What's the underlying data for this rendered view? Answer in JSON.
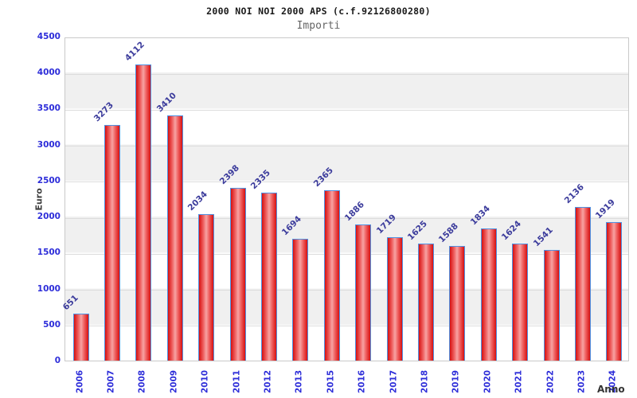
{
  "chart_data": {
    "type": "bar",
    "title": "2000 NOI NOI 2000 APS (c.f.92126800280)",
    "subtitle": "Importi",
    "xlabel": "Anno",
    "ylabel": "Euro",
    "categories": [
      "2006",
      "2007",
      "2008",
      "2009",
      "2010",
      "2011",
      "2012",
      "2013",
      "2015",
      "2016",
      "2017",
      "2018",
      "2019",
      "2020",
      "2021",
      "2022",
      "2023",
      "2024"
    ],
    "values": [
      651,
      3273,
      4112,
      3410,
      2034,
      2398,
      2335,
      1694,
      2365,
      1886,
      1719,
      1625,
      1588,
      1834,
      1624,
      1541,
      2136,
      1919
    ],
    "ylim": [
      0,
      4500
    ],
    "yticks": [
      0,
      500,
      1000,
      1500,
      2000,
      2500,
      3000,
      3500,
      4000,
      4500
    ],
    "grid": true,
    "legend": false,
    "band_fill": "alternating horizontal bands every 500 units",
    "colors": {
      "bar_edge": "#d61010",
      "bar_center": "#f7a3a3",
      "bar_border": "#4f92e3",
      "axis_tick_label": "#2d2dd9",
      "value_label": "#3c3c9c",
      "band_gray": "#f0f0f0",
      "gridline": "#dcdcdc",
      "frame": "#c9c9c9",
      "title": "#1a1a1a",
      "subtitle": "#666666",
      "axis_title": "#3d3d3d"
    }
  }
}
